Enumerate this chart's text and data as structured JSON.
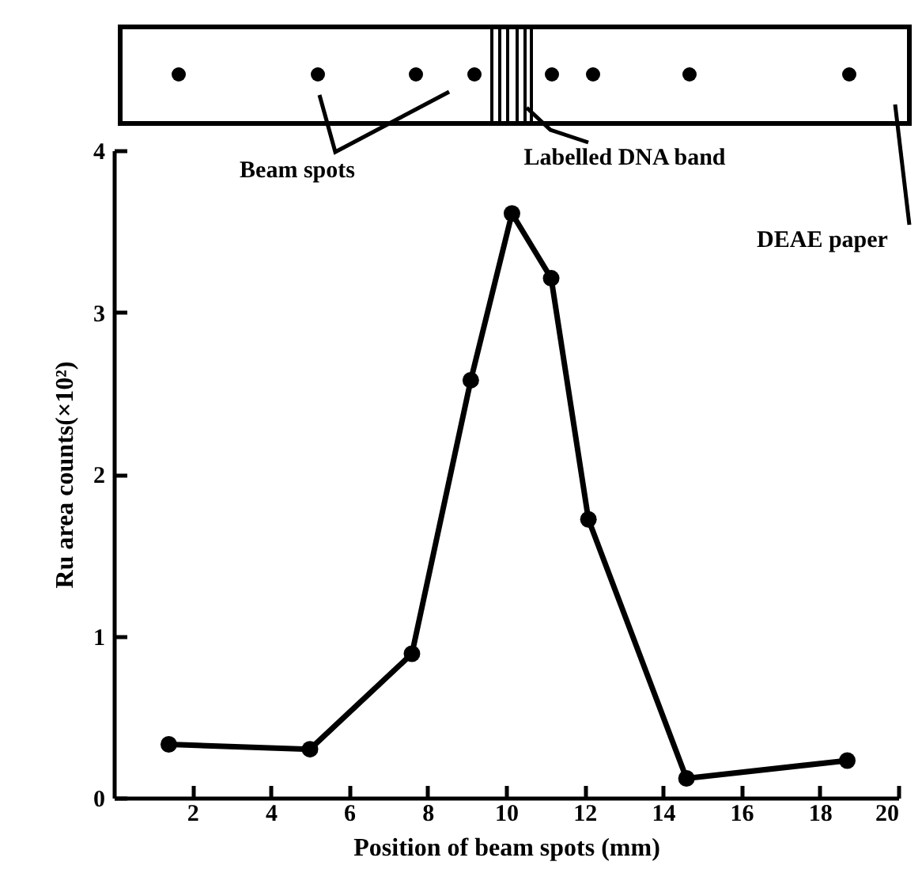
{
  "chart_data": {
    "type": "line",
    "xlabel": "Position of beam spots (mm)",
    "ylabel": "Ru area counts(×10²)",
    "x": [
      1.4,
      5.0,
      7.6,
      9.1,
      10.15,
      11.15,
      12.1,
      14.6,
      18.7
    ],
    "series": [
      {
        "color": "#000000",
        "values": [
          0.33,
          0.3,
          0.89,
          2.58,
          3.61,
          3.21,
          1.72,
          0.12,
          0.23
        ]
      }
    ],
    "xlim": [
      0,
      20
    ],
    "xticks": [
      2,
      4,
      6,
      8,
      10,
      12,
      14,
      16,
      18,
      20
    ],
    "ylim": [
      0,
      4
    ],
    "yticks": [
      0,
      1,
      2,
      3,
      4
    ],
    "marker": "circle",
    "line_style": "solid",
    "grid": false,
    "legend": false,
    "annotations": [
      "Beam spots",
      "Labelled DNA band",
      "DEAE paper"
    ]
  }
}
